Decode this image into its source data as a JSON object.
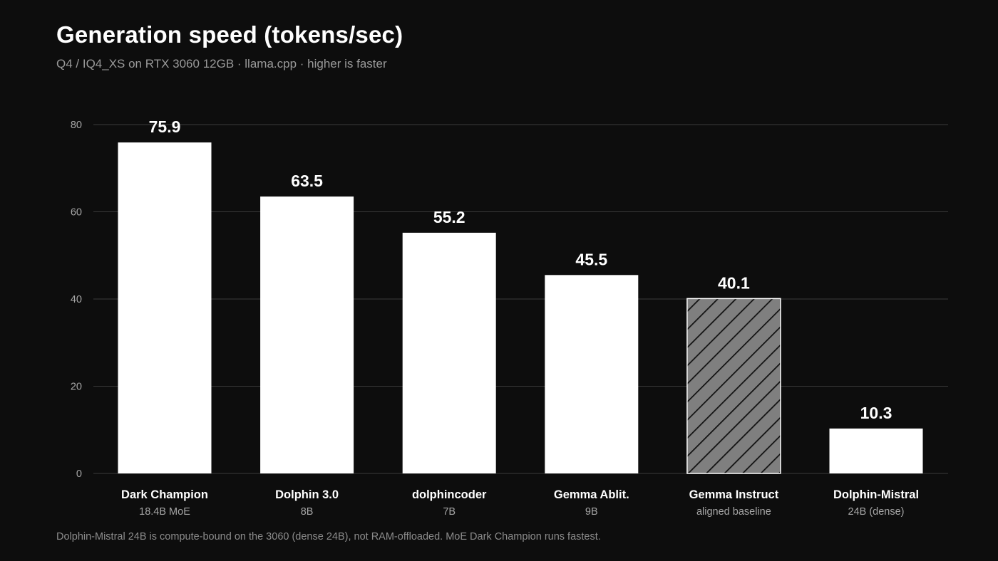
{
  "header": {
    "title": "Generation speed (tokens/sec)",
    "subtitle": "Q4 / IQ4_XS on RTX 3060 12GB · llama.cpp · higher is faster"
  },
  "footnote": "Dolphin-Mistral 24B is compute-bound on the 3060 (dense 24B), not RAM-offloaded. MoE Dark Champion runs fastest.",
  "colors": {
    "background": "#0d0d0d",
    "bar": "#ffffff",
    "baseline_fill": "#7f7f7f",
    "baseline_hatch": "#111111",
    "grid": "#3a3a3a"
  },
  "chart_data": {
    "type": "bar",
    "title": "Generation speed (tokens/sec)",
    "ylim": [
      0,
      80
    ],
    "yticks": [
      0,
      20,
      40,
      60,
      80
    ],
    "grid": true,
    "legend": "none",
    "categories": [
      "Dark Champion",
      "Dolphin 3.0",
      "dolphincoder",
      "Gemma Ablit.",
      "Gemma Instruct",
      "Dolphin-Mistral"
    ],
    "subcategories": [
      "18.4B MoE",
      "8B",
      "7B",
      "9B",
      "aligned baseline",
      "24B (dense)"
    ],
    "values": [
      75.9,
      63.5,
      55.2,
      45.5,
      40.1,
      10.3
    ],
    "value_labels": [
      "75.9",
      "63.5",
      "55.2",
      "45.5",
      "40.1",
      "10.3"
    ],
    "highlight": [
      false,
      false,
      false,
      false,
      true,
      false
    ]
  }
}
